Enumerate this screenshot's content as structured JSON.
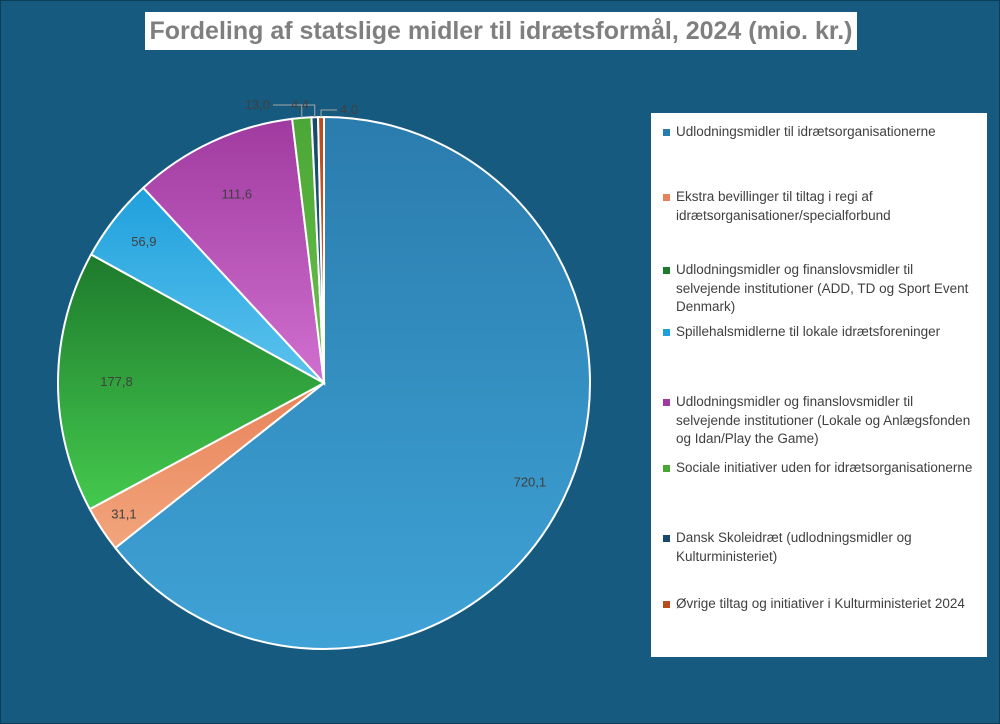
{
  "chart_data": {
    "type": "pie",
    "title": "Fordeling af statslige midler til idrætsformål, 2024 (mio. kr.)",
    "slices": [
      {
        "name": "Udlodningsmidler til idrætsorganisationerne",
        "value": 720.1,
        "label": "720,1",
        "color": "#3fa2d6",
        "color_dark": "#2a7cad"
      },
      {
        "name": "Ekstra bevillinger til tiltag i regi af idrætsorganisationer/specialforbund",
        "value": 31.1,
        "label": "31,1",
        "color": "#f2a57c",
        "color_dark": "#e8825a"
      },
      {
        "name": "Udlodningsmidler og finanslovsmidler til selvejende institutioner (ADD, TD og Sport Event Denmark)",
        "value": 177.8,
        "label": "177,8",
        "color": "#44c94e",
        "color_dark": "#1e7a2c"
      },
      {
        "name": "Spillehalsmidlerne til lokale idrætsforeninger",
        "value": 56.9,
        "label": "56,9",
        "color": "#5cc3ee",
        "color_dark": "#1fa0dc"
      },
      {
        "name": "Udlodningsmidler og finanslovsmidler til selvejende institutioner (Lokale og Anlægsfonden og Idan/Play the Game)",
        "value": 111.6,
        "label": "111,6",
        "color": "#d070cf",
        "color_dark": "#a03aa0"
      },
      {
        "name": "Sociale initiativer uden for idrætsorganisationerne",
        "value": 13.0,
        "label": "13,0",
        "color": "#6cc24a",
        "color_dark": "#4aa636"
      },
      {
        "name": "Dansk Skoleidræt (udlodningsmidler og Kulturministeriet)",
        "value": 4.4,
        "label": "4,4",
        "color": "#1f5f86",
        "color_dark": "#17496a"
      },
      {
        "name": "Øvrige tiltag og initiativer i Kulturministeriet 2024",
        "value": 4.0,
        "label": "4,0",
        "color": "#d9622b",
        "color_dark": "#b84c1c"
      }
    ],
    "start_angle_deg": 0,
    "direction": "clockwise",
    "legend_position": "right",
    "background_color": "#175a80"
  }
}
